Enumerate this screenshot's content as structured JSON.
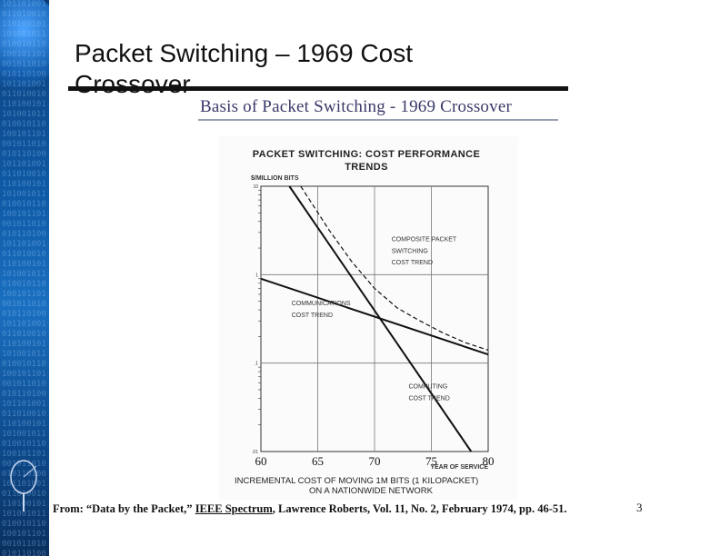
{
  "slide": {
    "title": "Packet Switching – 1969 Cost Crossover",
    "scan_heading": "Basis of Packet Switching - 1969 Crossover",
    "source_prefix": "From: “Data by the Packet,” ",
    "source_journal": "IEEE Spectrum",
    "source_suffix": ", Lawrence Roberts, Vol. 11, No. 2, February 1974, pp. 46-51.",
    "page_number": "3",
    "colors": {
      "strip": "#0f5aa6",
      "line": "#111111"
    }
  },
  "chart_data": {
    "type": "line",
    "title": "PACKET SWITCHING: COST PERFORMANCE TRENDS",
    "ylabel": "$/MILLION BITS",
    "xlabel": "YEAR OF SERVICE",
    "caption_line1": "INCREMENTAL COST OF MOVING 1M BITS (1 KILOPACKET)",
    "caption_line2": "ON A NATIONWIDE NETWORK",
    "y_scale": "log",
    "xlim": [
      60,
      80
    ],
    "ylim": [
      0.01,
      10
    ],
    "x_ticks": [
      "60",
      "65",
      "70",
      "75",
      "80"
    ],
    "y_major_ticks": [
      "10",
      "1",
      ".1",
      ".01"
    ],
    "grid": true,
    "series": [
      {
        "name": "COMMUNICATIONS COST TREND",
        "style": "solid",
        "x": [
          60,
          80
        ],
        "y": [
          0.9,
          0.125
        ]
      },
      {
        "name": "COMPUTING COST TREND",
        "style": "solid",
        "x": [
          62.5,
          78.5
        ],
        "y": [
          10,
          0.01
        ]
      },
      {
        "name": "COMPOSITE PACKET SWITCHING COST TREND",
        "style": "dashed",
        "x": [
          63.5,
          66,
          68,
          70,
          72,
          74,
          76,
          78,
          80
        ],
        "y": [
          10,
          3.2,
          1.4,
          0.7,
          0.42,
          0.3,
          0.22,
          0.17,
          0.14
        ]
      }
    ],
    "annotations": [
      {
        "text": "COMPOSITE PACKET",
        "x": 71.5,
        "y": 2.4
      },
      {
        "text": "SWITCHING",
        "x": 71.5,
        "y": 1.75
      },
      {
        "text": "COST TREND",
        "x": 71.5,
        "y": 1.3
      },
      {
        "text": "COMMUNICATIONS",
        "x": 62.7,
        "y": 0.45
      },
      {
        "text": "COST TREND",
        "x": 62.7,
        "y": 0.33
      },
      {
        "text": "COMPUTING",
        "x": 73,
        "y": 0.052
      },
      {
        "text": "COST TREND",
        "x": 73,
        "y": 0.038
      }
    ]
  }
}
